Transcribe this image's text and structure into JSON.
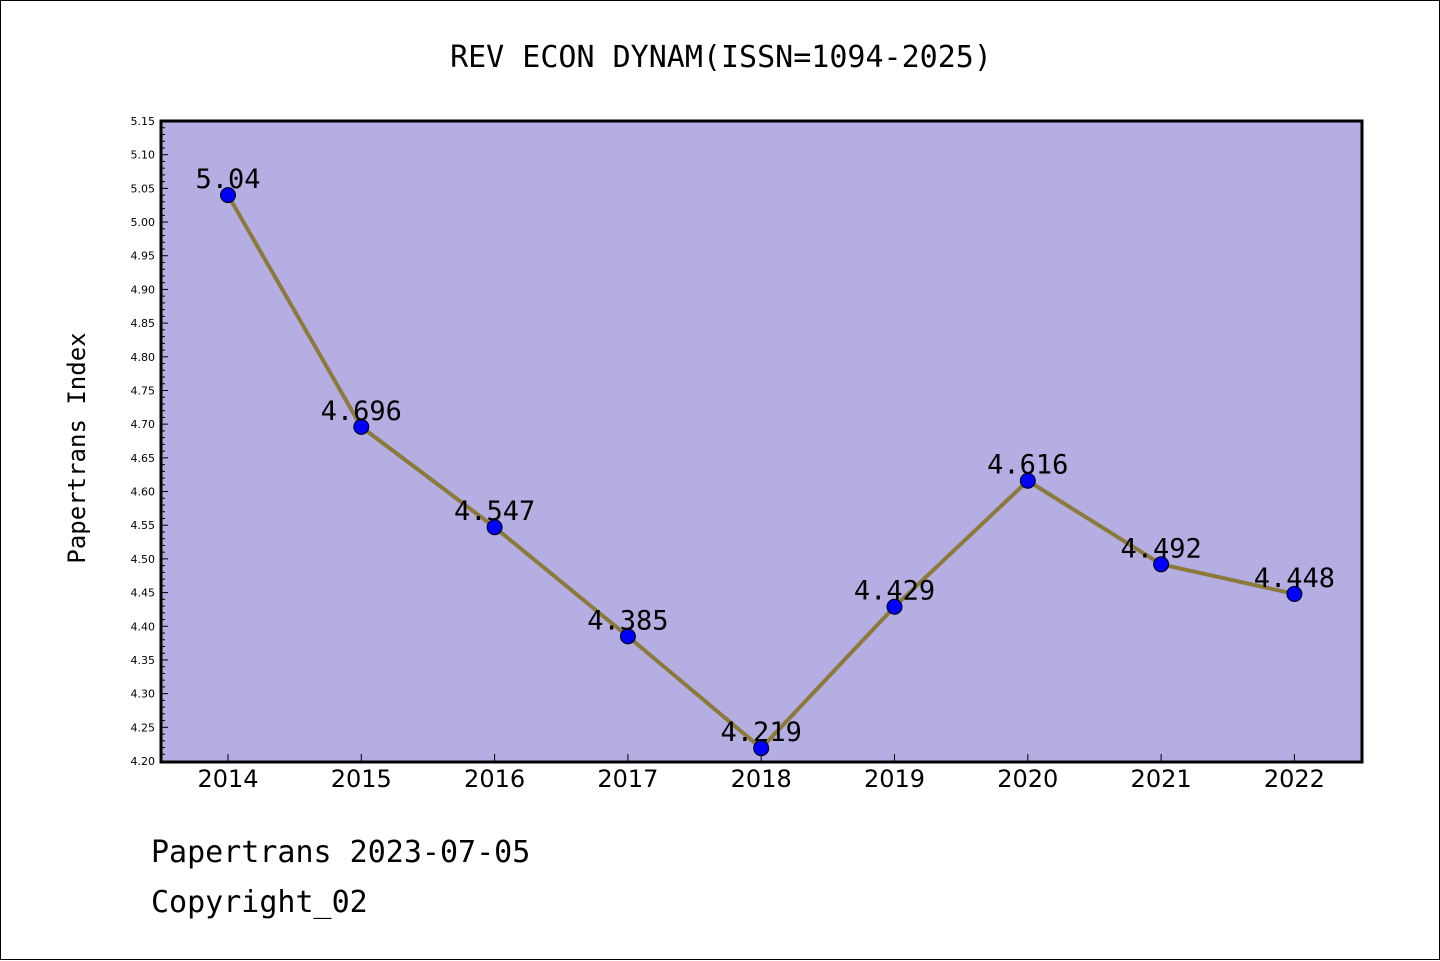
{
  "chart_data": {
    "type": "line",
    "title": "REV ECON DYNAM(ISSN=1094-2025)",
    "xlabel": "",
    "ylabel": "Papertrans Index",
    "categories": [
      "2014",
      "2015",
      "2016",
      "2017",
      "2018",
      "2019",
      "2020",
      "2021",
      "2022"
    ],
    "series": [
      {
        "values": [
          5.04,
          4.696,
          4.547,
          4.385,
          4.219,
          4.429,
          4.616,
          4.492,
          4.448
        ],
        "data_labels": [
          "5.04",
          "4.696",
          "4.547",
          "4.385",
          "4.219",
          "4.429",
          "4.616",
          "4.492",
          "4.448"
        ]
      }
    ],
    "ylim": [
      4.2,
      5.15
    ],
    "yticks": [
      "4.20",
      "4.25",
      "4.30",
      "4.35",
      "4.40",
      "4.45",
      "4.50",
      "4.55",
      "4.60",
      "4.65",
      "4.70",
      "4.75",
      "4.80",
      "4.85",
      "4.90",
      "4.95",
      "5.00",
      "5.05",
      "5.10",
      "5.15"
    ],
    "grid": false,
    "colors": {
      "plot_background": "#b4aee2",
      "line": "#8b7a3a",
      "marker": "#0000ff"
    }
  },
  "footer": {
    "line1": "Papertrans 2023-07-05",
    "line2": "Copyright_02"
  }
}
